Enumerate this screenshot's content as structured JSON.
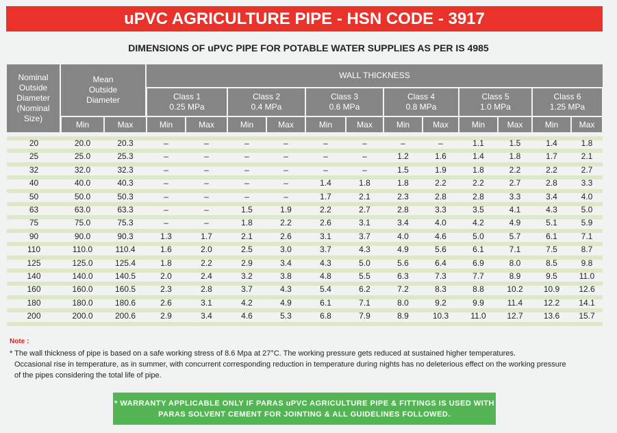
{
  "title": "uPVC AGRICULTURE PIPE - HSN CODE  - 3917",
  "subtitle": "DIMENSIONS OF uPVC PIPE FOR POTABLE WATER SUPPLIES AS PER IS 4985",
  "table": {
    "nominal_header": [
      "Nominal",
      "Outside",
      "Diameter",
      "(Nominal",
      "Size)"
    ],
    "mean_header": [
      "Mean",
      "Outside",
      "Diameter"
    ],
    "wall_thickness_header": "WALL THICKNESS",
    "classes": [
      {
        "name": "Class 1",
        "pressure": "0.25 MPa"
      },
      {
        "name": "Class 2",
        "pressure": "0.4 MPa"
      },
      {
        "name": "Class 3",
        "pressure": "0.6 MPa"
      },
      {
        "name": "Class 4",
        "pressure": "0.8 MPa"
      },
      {
        "name": "Class 5",
        "pressure": "1.0 MPa"
      },
      {
        "name": "Class 6",
        "pressure": "1.25 MPa"
      }
    ],
    "min_label": "Min",
    "max_label": "Max",
    "rows": [
      [
        "20",
        "20.0",
        "20.3",
        "–",
        "–",
        "–",
        "–",
        "–",
        "–",
        "–",
        "–",
        "1.1",
        "1.5",
        "1.4",
        "1.8"
      ],
      [
        "25",
        "25.0",
        "25.3",
        "–",
        "–",
        "–",
        "–",
        "–",
        "–",
        "1.2",
        "1.6",
        "1.4",
        "1.8",
        "1.7",
        "2.1"
      ],
      [
        "32",
        "32.0",
        "32.3",
        "–",
        "–",
        "–",
        "–",
        "–",
        "–",
        "1.5",
        "1.9",
        "1.8",
        "2.2",
        "2.2",
        "2.7"
      ],
      [
        "40",
        "40.0",
        "40.3",
        "–",
        "–",
        "–",
        "–",
        "1.4",
        "1.8",
        "1.8",
        "2.2",
        "2.2",
        "2.7",
        "2.8",
        "3.3"
      ],
      [
        "50",
        "50.0",
        "50.3",
        "–",
        "–",
        "–",
        "–",
        "1.7",
        "2.1",
        "2.3",
        "2.8",
        "2.8",
        "3.3",
        "3.4",
        "4.0"
      ],
      [
        "63",
        "63.0",
        "63.3",
        "–",
        "–",
        "1.5",
        "1.9",
        "2.2",
        "2.7",
        "2.8",
        "3.3",
        "3.5",
        "4.1",
        "4.3",
        "5.0"
      ],
      [
        "75",
        "75.0",
        "75.3",
        "–",
        "–",
        "1.8",
        "2.2",
        "2.6",
        "3.1",
        "3.4",
        "4.0",
        "4.2",
        "4.9",
        "5.1",
        "5.9"
      ],
      [
        "90",
        "90.0",
        "90.3",
        "1.3",
        "1.7",
        "2.1",
        "2.6",
        "3.1",
        "3.7",
        "4.0",
        "4.6",
        "5.0",
        "5.7",
        "6.1",
        "7.1"
      ],
      [
        "110",
        "110.0",
        "110.4",
        "1.6",
        "2.0",
        "2.5",
        "3.0",
        "3.7",
        "4.3",
        "4.9",
        "5.6",
        "6.1",
        "7.1",
        "7.5",
        "8.7"
      ],
      [
        "125",
        "125.0",
        "125.4",
        "1.8",
        "2.2",
        "2.9",
        "3.4",
        "4.3",
        "5.0",
        "5.6",
        "6.4",
        "6.9",
        "8.0",
        "8.5",
        "9.8"
      ],
      [
        "140",
        "140.0",
        "140.5",
        "2.0",
        "2.4",
        "3.2",
        "3.8",
        "4.8",
        "5.5",
        "6.3",
        "7.3",
        "7.7",
        "8.9",
        "9.5",
        "11.0"
      ],
      [
        "160",
        "160.0",
        "160.5",
        "2.3",
        "2.8",
        "3.7",
        "4.3",
        "5.4",
        "6.2",
        "7.2",
        "8.3",
        "8.8",
        "10.2",
        "10.9",
        "12.6"
      ],
      [
        "180",
        "180.0",
        "180.6",
        "2.6",
        "3.1",
        "4.2",
        "4.9",
        "6.1",
        "7.1",
        "8.0",
        "9.2",
        "9.9",
        "11.4",
        "12.2",
        "14.1"
      ],
      [
        "200",
        "200.0",
        "200.6",
        "2.9",
        "3.4",
        "4.6",
        "5.3",
        "6.8",
        "7.9",
        "8.9",
        "10.3",
        "11.0",
        "12.7",
        "13.6",
        "15.7"
      ]
    ]
  },
  "note": {
    "label": "Note :",
    "line1": "* The wall thickness of pipe is based on a safe working stress of 8.6 Mpa at 27°C. The working pressure gets reduced at sustained higher temperatures.",
    "line2": "Occasional rise in temperature, as in summer, with concurrent corresponding reduction in temperature during nights has no deleterious effect on the working pressure",
    "line3": "of the pipes considering the total life of pipe."
  },
  "warranty": {
    "line1": "* WARRANTY APPLICABLE ONLY IF PARAS uPVC AGRICULTURE PIPE & FITTINGS IS USED WITH",
    "line2": "PARAS SOLVENT CEMENT FOR JOINTING & ALL GUIDELINES FOLLOWED."
  },
  "colors": {
    "banner": "#e8322a",
    "header_gray": "#858585",
    "row_stripe": "#dce8c8",
    "warranty_green": "#53b553",
    "note_red": "#d8261e"
  }
}
